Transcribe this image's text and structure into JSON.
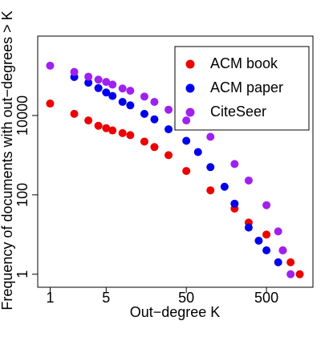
{
  "chart_data": {
    "type": "scatter",
    "x_label": "Out−degree K",
    "y_label": "Frequency of documents with out−degrees > K",
    "xlog": true,
    "ylog": true,
    "xlim": [
      0.7,
      1900
    ],
    "ylim": [
      0.47,
      1000000
    ],
    "xticks": [
      1,
      5,
      50,
      500
    ],
    "yticks": [
      1,
      100,
      10000
    ],
    "legend": "top-right",
    "series": [
      {
        "name": "ACM book",
        "color": "#ee0000",
        "x": [
          1,
          2,
          3,
          4,
          5,
          6,
          8,
          10,
          15,
          20,
          30,
          50,
          100,
          200,
          300,
          500,
          800,
          1000,
          1300
        ],
        "values": [
          20000,
          11000,
          7500,
          5500,
          4800,
          4200,
          3600,
          3200,
          2200,
          1600,
          1000,
          400,
          130,
          45,
          20,
          10,
          4,
          2,
          1
        ]
      },
      {
        "name": "ACM paper",
        "color": "#0000ee",
        "x": [
          2,
          3,
          4,
          5,
          6,
          8,
          10,
          15,
          20,
          30,
          50,
          70,
          100,
          150,
          200,
          300,
          400,
          500,
          700
        ],
        "values": [
          93000,
          67000,
          49000,
          38000,
          31000,
          22000,
          18000,
          11000,
          8000,
          4500,
          2300,
          1200,
          500,
          160,
          60,
          15,
          7,
          4,
          2
        ]
      },
      {
        "name": "CiteSeer",
        "color": "#a020f0",
        "x": [
          1,
          2,
          3,
          4,
          5,
          6,
          8,
          10,
          15,
          20,
          30,
          50,
          100,
          200,
          300,
          500,
          700,
          800,
          1000
        ],
        "values": [
          180000,
          125000,
          95000,
          80000,
          70000,
          60000,
          48000,
          42000,
          30000,
          22000,
          14000,
          7500,
          2900,
          600,
          230,
          55,
          12,
          4,
          1
        ]
      }
    ]
  }
}
